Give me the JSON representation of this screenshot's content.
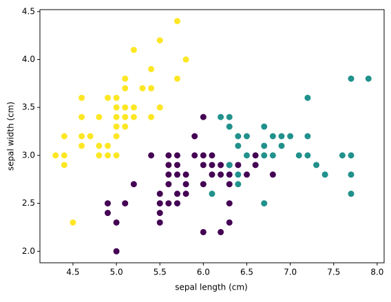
{
  "chart_data": {
    "type": "scatter",
    "x_label": "sepal length (cm)",
    "y_label": "sepal width (cm)",
    "xlim": [
      4.12,
      8.08
    ],
    "ylim": [
      1.88,
      4.52
    ],
    "xticks": [
      4.5,
      {
        "value": 5,
        "label": "5.0"
      },
      5.5,
      {
        "value": 6,
        "label": "6.0"
      },
      6.5,
      {
        "value": 7,
        "label": "7.0"
      },
      7.5,
      {
        "value": 8,
        "label": "8.0"
      }
    ],
    "yticks": [
      {
        "value": 2,
        "label": "2.0"
      },
      2.5,
      {
        "value": 3,
        "label": "3.0"
      },
      3.5,
      {
        "value": 4,
        "label": "4.0"
      },
      4.5
    ],
    "series": [
      {
        "color": "#fde725",
        "x": [
          4.3,
          4.4,
          4.4,
          4.4,
          4.5,
          4.6,
          4.6,
          4.6,
          4.6,
          4.7,
          4.8,
          4.8,
          4.8,
          4.9,
          4.9,
          4.9,
          5.0,
          5.0,
          5.0,
          5.0,
          5.0,
          5.0,
          5.1,
          5.1,
          5.1,
          5.1,
          5.1,
          5.2,
          5.2,
          5.2,
          5.3,
          5.4,
          5.4,
          5.4,
          5.5,
          5.5,
          5.7,
          5.7,
          5.8
        ],
        "values": [
          3.0,
          3.0,
          2.9,
          3.2,
          2.3,
          3.6,
          3.4,
          3.2,
          3.1,
          3.2,
          3.4,
          3.1,
          3.0,
          3.6,
          3.1,
          3.0,
          3.6,
          3.5,
          3.4,
          3.3,
          3.2,
          3.0,
          3.8,
          3.7,
          3.5,
          3.4,
          3.3,
          4.1,
          3.5,
          3.4,
          3.7,
          3.9,
          3.7,
          3.4,
          4.2,
          3.5,
          4.4,
          3.8,
          4.0
        ]
      },
      {
        "color": "#440154",
        "x": [
          4.9,
          4.9,
          5.0,
          5.0,
          5.1,
          5.2,
          5.4,
          5.5,
          5.5,
          5.5,
          5.5,
          5.6,
          5.6,
          5.6,
          5.6,
          5.6,
          5.7,
          5.7,
          5.7,
          5.7,
          5.7,
          5.8,
          5.8,
          5.8,
          5.9,
          5.9,
          6.0,
          6.0,
          6.0,
          6.0,
          6.0,
          6.1,
          6.1,
          6.1,
          6.2,
          6.2,
          6.2,
          6.3,
          6.3,
          6.3,
          6.3,
          6.3,
          6.4,
          6.5,
          6.6,
          6.6,
          6.8
        ],
        "values": [
          2.5,
          2.4,
          2.3,
          2.0,
          2.5,
          2.7,
          3.0,
          2.6,
          2.5,
          2.4,
          2.3,
          3.0,
          2.9,
          2.8,
          2.7,
          2.5,
          3.0,
          2.9,
          2.8,
          2.6,
          2.5,
          2.8,
          2.7,
          2.6,
          3.2,
          3.0,
          3.4,
          3.0,
          2.9,
          2.7,
          2.2,
          3.0,
          2.9,
          2.8,
          2.9,
          2.8,
          2.2,
          2.9,
          2.8,
          2.7,
          2.5,
          2.3,
          2.9,
          2.8,
          3.0,
          2.9,
          2.8
        ]
      },
      {
        "color": "#21918c",
        "x": [
          6.1,
          6.2,
          6.3,
          6.3,
          6.3,
          6.4,
          6.4,
          6.4,
          6.4,
          6.5,
          6.5,
          6.7,
          6.7,
          6.7,
          6.7,
          6.8,
          6.8,
          6.9,
          6.9,
          7.0,
          7.1,
          7.2,
          7.2,
          7.2,
          7.3,
          7.4,
          7.6,
          7.7,
          7.7,
          7.7,
          7.7,
          7.9
        ],
        "values": [
          2.6,
          3.4,
          3.4,
          3.3,
          2.9,
          3.2,
          3.1,
          2.8,
          2.7,
          3.2,
          3.0,
          3.3,
          3.1,
          3.0,
          2.5,
          3.2,
          3.0,
          3.2,
          3.1,
          3.2,
          3.0,
          3.6,
          3.2,
          3.0,
          2.9,
          2.8,
          3.0,
          3.8,
          3.0,
          2.8,
          2.6,
          3.8
        ]
      }
    ]
  }
}
